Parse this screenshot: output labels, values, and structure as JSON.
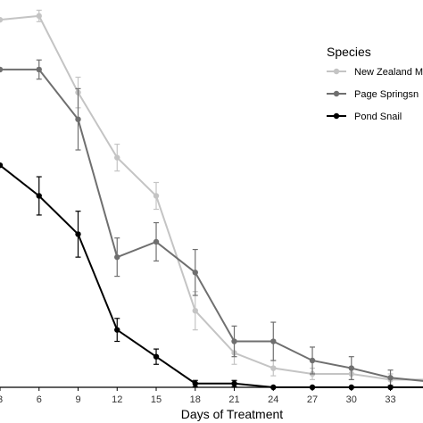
{
  "chart_data": {
    "type": "line",
    "xlabel": "Days of Treatment",
    "ylabel": "",
    "title": "",
    "x": [
      3,
      6,
      9,
      12,
      15,
      18,
      21,
      24,
      27,
      30,
      33,
      36
    ],
    "x_ticks": [
      3,
      6,
      9,
      12,
      15,
      18,
      21,
      24,
      27,
      30,
      33
    ],
    "xlim": [
      3,
      35.5
    ],
    "ylim": [
      0,
      100
    ],
    "grid": false,
    "legend": {
      "title": "Species",
      "placement": "right",
      "entries": [
        "New Zealand M",
        "Page Springsn",
        "Pond Snail"
      ]
    },
    "series": [
      {
        "name": "New Zealand M",
        "color": "#c4c4c4",
        "values": [
          96,
          97,
          77,
          60,
          50,
          20,
          9,
          5,
          3.5,
          3.5,
          2,
          2
        ],
        "errors": [
          0,
          1.5,
          4,
          3.5,
          3.5,
          5,
          3,
          2,
          1.5,
          1.5,
          1.5,
          0
        ]
      },
      {
        "name": "Page Springsn",
        "color": "#6f6f6f",
        "values": [
          83,
          83,
          70,
          34,
          38,
          30,
          12,
          12,
          7,
          5,
          2.5,
          1.5
        ],
        "errors": [
          0,
          2.5,
          8,
          5,
          5,
          6,
          4,
          5,
          3.5,
          3,
          2,
          0
        ]
      },
      {
        "name": "Pond Snail",
        "color": "#000000",
        "values": [
          58,
          50,
          40,
          15,
          8,
          1,
          1,
          0,
          0,
          0,
          0,
          0
        ],
        "errors": [
          0,
          5,
          6,
          3,
          2,
          0.8,
          0.8,
          0,
          0,
          0,
          0,
          0
        ]
      }
    ]
  }
}
